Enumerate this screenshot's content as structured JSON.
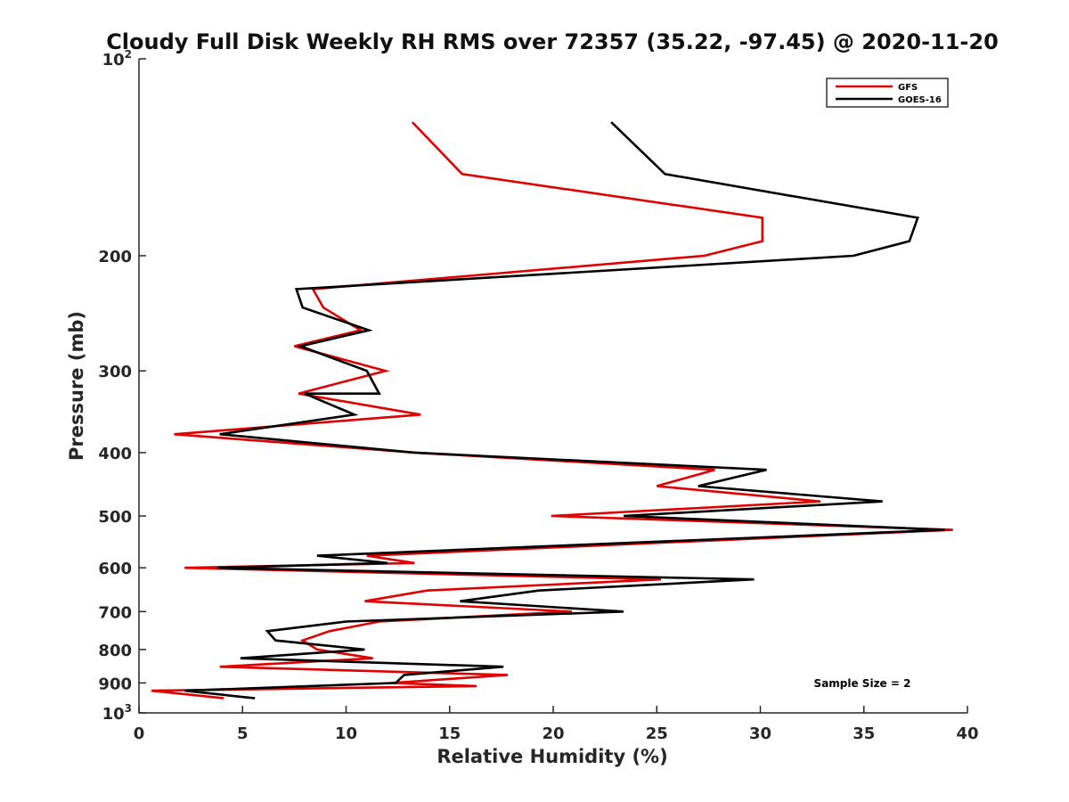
{
  "chart_data": {
    "type": "line",
    "title": "Cloudy Full Disk Weekly RH RMS over 72357 (35.22, -97.45) @ 2020-11-20",
    "xlabel": "Relative Humidity (%)",
    "ylabel": "Pressure (mb)",
    "xlim": [
      0,
      40
    ],
    "ylim": [
      100,
      1000
    ],
    "yscale": "log",
    "y_reversed": true,
    "xticks": [
      0,
      5,
      10,
      15,
      20,
      25,
      30,
      35,
      40
    ],
    "xtick_labels": [
      "0",
      "5",
      "10",
      "15",
      "20",
      "25",
      "30",
      "35",
      "40"
    ],
    "yticks": [
      {
        "value": 100,
        "base": "10",
        "exp": "2"
      },
      {
        "value": 200,
        "label": "200"
      },
      {
        "value": 300,
        "label": "300"
      },
      {
        "value": 400,
        "label": "400"
      },
      {
        "value": 500,
        "label": "500"
      },
      {
        "value": 600,
        "label": "600"
      },
      {
        "value": 700,
        "label": "700"
      },
      {
        "value": 800,
        "label": "800"
      },
      {
        "value": 900,
        "label": "900"
      },
      {
        "value": 1000,
        "base": "10",
        "exp": "3"
      }
    ],
    "grid": false,
    "legend_position": "top-right",
    "annotation": "Sample Size = 2",
    "series": [
      {
        "name": "GFS",
        "color": "#e00000",
        "points": [
          [
            13.2,
            125
          ],
          [
            15.6,
            150
          ],
          [
            30.1,
            175
          ],
          [
            30.1,
            190
          ],
          [
            27.3,
            200
          ],
          [
            8.4,
            225
          ],
          [
            8.9,
            240
          ],
          [
            10.7,
            260
          ],
          [
            7.5,
            275
          ],
          [
            11.9,
            300
          ],
          [
            7.7,
            325
          ],
          [
            13.6,
            350
          ],
          [
            1.7,
            375
          ],
          [
            13.3,
            400
          ],
          [
            27.8,
            425
          ],
          [
            25.0,
            450
          ],
          [
            32.9,
            475
          ],
          [
            19.9,
            500
          ],
          [
            39.3,
            525
          ],
          [
            11.0,
            575
          ],
          [
            13.3,
            590
          ],
          [
            2.2,
            600
          ],
          [
            25.2,
            625
          ],
          [
            13.9,
            650
          ],
          [
            10.9,
            675
          ],
          [
            20.9,
            700
          ],
          [
            11.6,
            725
          ],
          [
            9.2,
            750
          ],
          [
            7.9,
            775
          ],
          [
            8.6,
            800
          ],
          [
            11.3,
            825
          ],
          [
            3.9,
            850
          ],
          [
            17.8,
            875
          ],
          [
            12.2,
            900
          ],
          [
            16.3,
            910
          ],
          [
            0.6,
            925
          ],
          [
            4.1,
            950
          ]
        ]
      },
      {
        "name": "GOES-16",
        "color": "#000000",
        "points": [
          [
            22.8,
            125
          ],
          [
            25.4,
            150
          ],
          [
            37.6,
            175
          ],
          [
            37.2,
            190
          ],
          [
            34.5,
            200
          ],
          [
            7.6,
            225
          ],
          [
            7.9,
            240
          ],
          [
            11.1,
            260
          ],
          [
            7.8,
            275
          ],
          [
            11.0,
            300
          ],
          [
            11.6,
            325
          ],
          [
            8.0,
            325
          ],
          [
            10.4,
            350
          ],
          [
            3.9,
            375
          ],
          [
            13.3,
            400
          ],
          [
            30.3,
            425
          ],
          [
            27.0,
            450
          ],
          [
            35.9,
            475
          ],
          [
            23.4,
            500
          ],
          [
            38.9,
            525
          ],
          [
            8.6,
            575
          ],
          [
            12.0,
            590
          ],
          [
            3.8,
            600
          ],
          [
            29.7,
            625
          ],
          [
            19.3,
            650
          ],
          [
            15.5,
            675
          ],
          [
            23.4,
            700
          ],
          [
            10.0,
            725
          ],
          [
            6.2,
            750
          ],
          [
            6.6,
            775
          ],
          [
            10.9,
            800
          ],
          [
            4.9,
            825
          ],
          [
            17.6,
            850
          ],
          [
            12.8,
            875
          ],
          [
            12.4,
            900
          ],
          [
            2.2,
            925
          ],
          [
            5.6,
            950
          ]
        ]
      }
    ]
  }
}
